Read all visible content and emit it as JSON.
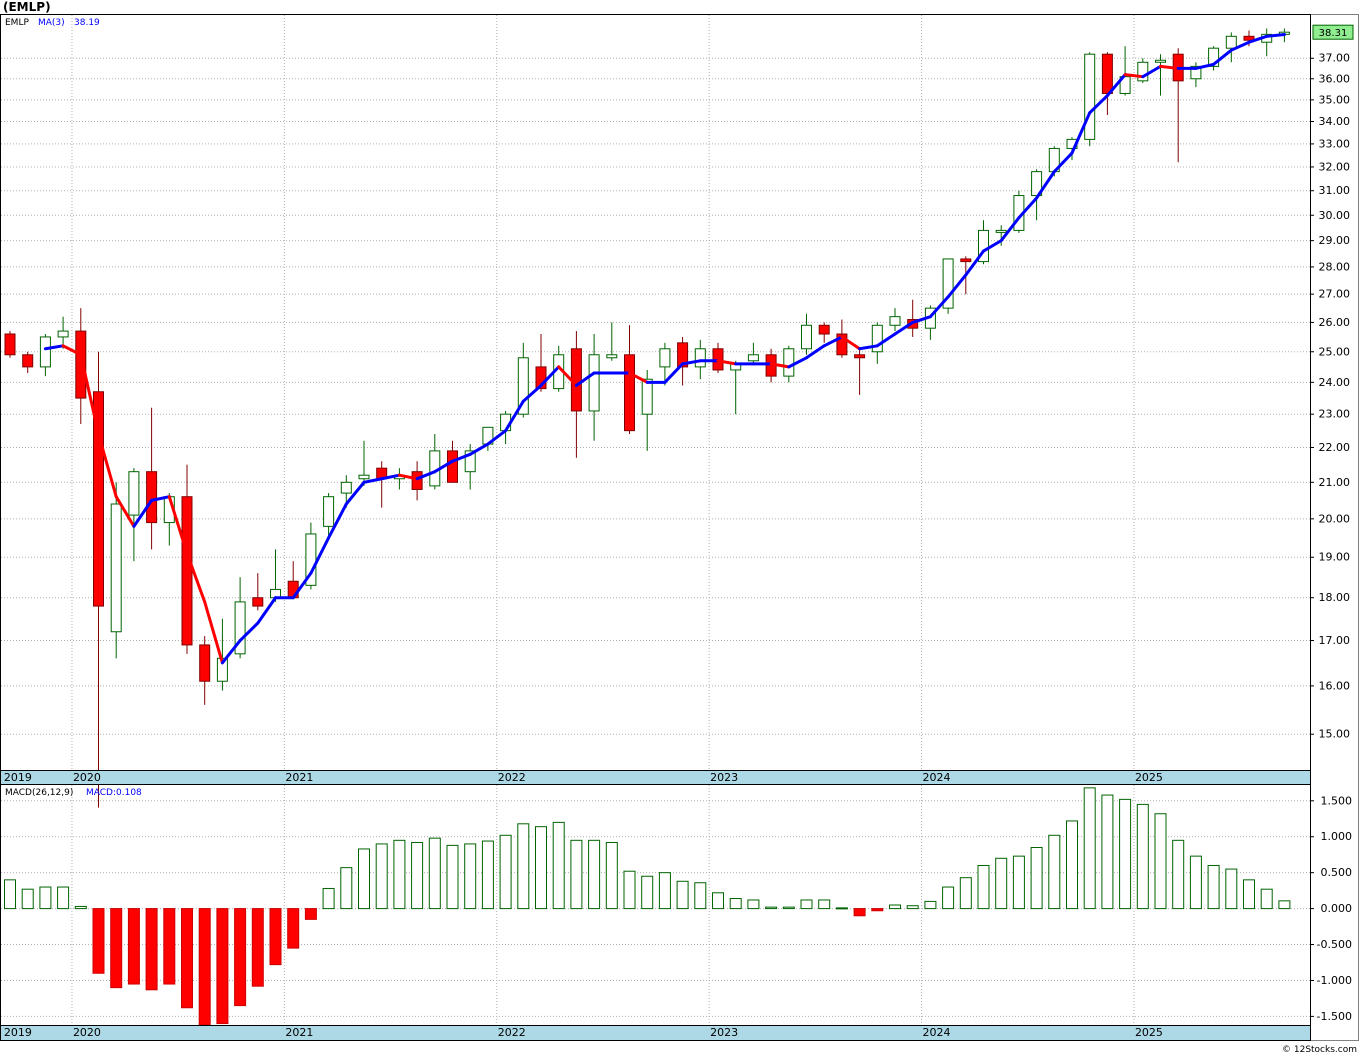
{
  "window_title": "(EMLP)",
  "footer": "© 12Stocks.com",
  "colors": {
    "up_candle_stroke": "#006400",
    "down_candle_fill": "#ff0000",
    "ma_up": "#0000ff",
    "ma_down": "#ff0000",
    "time_bar": "#add8e6",
    "grid": "#b0b0b0",
    "last_price_bg": "#90ee90"
  },
  "chart_data": [
    {
      "type": "candlestick",
      "symbol": "EMLP",
      "period": "monthly",
      "legend": {
        "symbol_label": "EMLP",
        "ma_label": "MA(3)",
        "ma_value": "38.19"
      },
      "last_price_label": "38.31",
      "y_scale": "log",
      "ylim": [
        14.3,
        39.2
      ],
      "y_ticks": [
        "15.00",
        "16.00",
        "17.00",
        "18.00",
        "19.00",
        "20.00",
        "21.00",
        "22.00",
        "23.00",
        "24.00",
        "25.00",
        "26.00",
        "27.00",
        "28.00",
        "29.00",
        "30.00",
        "31.00",
        "32.00",
        "33.00",
        "34.00",
        "35.00",
        "36.00",
        "37.00"
      ],
      "x_labels": [
        {
          "label": "2019",
          "index": -0.4
        },
        {
          "label": "2020",
          "index": 3.5
        },
        {
          "label": "2021",
          "index": 15.5
        },
        {
          "label": "2022",
          "index": 27.5
        },
        {
          "label": "2023",
          "index": 39.5
        },
        {
          "label": "2024",
          "index": 51.5
        },
        {
          "label": "2025",
          "index": 63.5
        }
      ],
      "grid": true,
      "candles": [
        {
          "d": "2019-09",
          "o": 25.6,
          "h": 25.7,
          "l": 24.8,
          "c": 24.9
        },
        {
          "d": "2019-10",
          "o": 24.9,
          "h": 25.0,
          "l": 24.3,
          "c": 24.5
        },
        {
          "d": "2019-11",
          "o": 24.5,
          "h": 25.6,
          "l": 24.2,
          "c": 25.5
        },
        {
          "d": "2019-12",
          "o": 25.5,
          "h": 26.2,
          "l": 25.1,
          "c": 25.7
        },
        {
          "d": "2020-01",
          "o": 25.7,
          "h": 26.5,
          "l": 22.7,
          "c": 23.5
        },
        {
          "d": "2020-02",
          "o": 23.7,
          "h": 25.0,
          "l": 13.6,
          "c": 17.8
        },
        {
          "d": "2020-03",
          "o": 17.2,
          "h": 21.0,
          "l": 16.6,
          "c": 20.4
        },
        {
          "d": "2020-04",
          "o": 20.1,
          "h": 21.4,
          "l": 18.9,
          "c": 21.3
        },
        {
          "d": "2020-05",
          "o": 21.3,
          "h": 23.2,
          "l": 19.2,
          "c": 19.9
        },
        {
          "d": "2020-06",
          "o": 19.9,
          "h": 20.7,
          "l": 19.3,
          "c": 20.6
        },
        {
          "d": "2020-07",
          "o": 20.6,
          "h": 21.5,
          "l": 16.7,
          "c": 16.9
        },
        {
          "d": "2020-08",
          "o": 16.9,
          "h": 17.1,
          "l": 15.6,
          "c": 16.1
        },
        {
          "d": "2020-09",
          "o": 16.1,
          "h": 17.5,
          "l": 15.9,
          "c": 16.6
        },
        {
          "d": "2020-10",
          "o": 16.7,
          "h": 18.5,
          "l": 16.6,
          "c": 17.9
        },
        {
          "d": "2020-11",
          "o": 18.0,
          "h": 18.6,
          "l": 17.7,
          "c": 17.8
        },
        {
          "d": "2020-12",
          "o": 18.0,
          "h": 19.2,
          "l": 17.9,
          "c": 18.2
        },
        {
          "d": "2021-01",
          "o": 18.4,
          "h": 18.9,
          "l": 18.0,
          "c": 18.0
        },
        {
          "d": "2021-02",
          "o": 18.3,
          "h": 19.9,
          "l": 18.2,
          "c": 19.6
        },
        {
          "d": "2021-03",
          "o": 19.8,
          "h": 20.7,
          "l": 19.5,
          "c": 20.6
        },
        {
          "d": "2021-04",
          "o": 20.7,
          "h": 21.2,
          "l": 20.3,
          "c": 21.0
        },
        {
          "d": "2021-05",
          "o": 21.1,
          "h": 22.2,
          "l": 20.9,
          "c": 21.2
        },
        {
          "d": "2021-06",
          "o": 21.4,
          "h": 21.6,
          "l": 20.3,
          "c": 21.1
        },
        {
          "d": "2021-07",
          "o": 21.1,
          "h": 21.4,
          "l": 20.8,
          "c": 21.2
        },
        {
          "d": "2021-08",
          "o": 21.3,
          "h": 21.6,
          "l": 20.5,
          "c": 20.8
        },
        {
          "d": "2021-09",
          "o": 20.9,
          "h": 22.4,
          "l": 20.8,
          "c": 21.9
        },
        {
          "d": "2021-10",
          "o": 21.9,
          "h": 22.2,
          "l": 21.0,
          "c": 21.0
        },
        {
          "d": "2021-11",
          "o": 21.3,
          "h": 22.1,
          "l": 20.8,
          "c": 21.9
        },
        {
          "d": "2021-12",
          "o": 22.1,
          "h": 22.6,
          "l": 21.9,
          "c": 22.6
        },
        {
          "d": "2022-01",
          "o": 22.5,
          "h": 23.1,
          "l": 22.1,
          "c": 23.0
        },
        {
          "d": "2022-02",
          "o": 23.0,
          "h": 25.3,
          "l": 22.9,
          "c": 24.8
        },
        {
          "d": "2022-03",
          "o": 24.5,
          "h": 25.6,
          "l": 23.7,
          "c": 23.8
        },
        {
          "d": "2022-04",
          "o": 23.8,
          "h": 25.2,
          "l": 23.7,
          "c": 24.9
        },
        {
          "d": "2022-05",
          "o": 25.1,
          "h": 25.7,
          "l": 21.7,
          "c": 23.1
        },
        {
          "d": "2022-06",
          "o": 23.1,
          "h": 25.6,
          "l": 22.2,
          "c": 24.9
        },
        {
          "d": "2022-07",
          "o": 24.8,
          "h": 26.0,
          "l": 24.7,
          "c": 24.9
        },
        {
          "d": "2022-08",
          "o": 24.9,
          "h": 25.9,
          "l": 22.4,
          "c": 22.5
        },
        {
          "d": "2022-09",
          "o": 23.0,
          "h": 24.4,
          "l": 21.9,
          "c": 24.1
        },
        {
          "d": "2022-10",
          "o": 24.5,
          "h": 25.3,
          "l": 23.9,
          "c": 25.1
        },
        {
          "d": "2022-11",
          "o": 25.3,
          "h": 25.5,
          "l": 23.9,
          "c": 24.5
        },
        {
          "d": "2022-12",
          "o": 24.5,
          "h": 25.4,
          "l": 24.1,
          "c": 25.1
        },
        {
          "d": "2023-01",
          "o": 25.1,
          "h": 25.3,
          "l": 24.3,
          "c": 24.4
        },
        {
          "d": "2023-02",
          "o": 24.4,
          "h": 24.7,
          "l": 23.0,
          "c": 24.6
        },
        {
          "d": "2023-03",
          "o": 24.7,
          "h": 25.3,
          "l": 24.6,
          "c": 24.9
        },
        {
          "d": "2023-04",
          "o": 24.9,
          "h": 25.1,
          "l": 24.0,
          "c": 24.2
        },
        {
          "d": "2023-05",
          "o": 24.2,
          "h": 25.2,
          "l": 24.0,
          "c": 25.1
        },
        {
          "d": "2023-06",
          "o": 25.1,
          "h": 26.3,
          "l": 24.9,
          "c": 25.9
        },
        {
          "d": "2023-07",
          "o": 25.9,
          "h": 26.0,
          "l": 25.3,
          "c": 25.6
        },
        {
          "d": "2023-08",
          "o": 25.6,
          "h": 26.1,
          "l": 24.8,
          "c": 24.9
        },
        {
          "d": "2023-09",
          "o": 24.9,
          "h": 25.1,
          "l": 23.6,
          "c": 24.8
        },
        {
          "d": "2023-10",
          "o": 25.0,
          "h": 26.0,
          "l": 24.6,
          "c": 25.9
        },
        {
          "d": "2023-11",
          "o": 25.9,
          "h": 26.5,
          "l": 25.7,
          "c": 26.2
        },
        {
          "d": "2023-12",
          "o": 26.1,
          "h": 26.8,
          "l": 25.5,
          "c": 25.8
        },
        {
          "d": "2024-01",
          "o": 25.8,
          "h": 26.6,
          "l": 25.4,
          "c": 26.5
        },
        {
          "d": "2024-02",
          "o": 26.5,
          "h": 28.3,
          "l": 26.3,
          "c": 28.3
        },
        {
          "d": "2024-03",
          "o": 28.3,
          "h": 28.4,
          "l": 27.0,
          "c": 28.2
        },
        {
          "d": "2024-04",
          "o": 28.2,
          "h": 29.8,
          "l": 28.1,
          "c": 29.4
        },
        {
          "d": "2024-05",
          "o": 29.4,
          "h": 29.6,
          "l": 28.8,
          "c": 29.4
        },
        {
          "d": "2024-06",
          "o": 29.4,
          "h": 31.0,
          "l": 29.3,
          "c": 30.8
        },
        {
          "d": "2024-07",
          "o": 30.8,
          "h": 31.9,
          "l": 29.8,
          "c": 31.8
        },
        {
          "d": "2024-08",
          "o": 31.8,
          "h": 32.9,
          "l": 31.6,
          "c": 32.8
        },
        {
          "d": "2024-09",
          "o": 32.8,
          "h": 33.3,
          "l": 32.3,
          "c": 33.2
        },
        {
          "d": "2024-10",
          "o": 33.2,
          "h": 37.3,
          "l": 32.9,
          "c": 37.2
        },
        {
          "d": "2024-11",
          "o": 37.2,
          "h": 37.3,
          "l": 34.3,
          "c": 35.3
        },
        {
          "d": "2024-12",
          "o": 35.3,
          "h": 37.6,
          "l": 35.2,
          "c": 36.1
        },
        {
          "d": "2025-01",
          "o": 35.9,
          "h": 37.0,
          "l": 35.8,
          "c": 36.8
        },
        {
          "d": "2025-02",
          "o": 36.9,
          "h": 37.2,
          "l": 35.2,
          "c": 36.9
        },
        {
          "d": "2025-03",
          "o": 37.2,
          "h": 37.5,
          "l": 32.2,
          "c": 35.9
        },
        {
          "d": "2025-04",
          "o": 36.0,
          "h": 36.8,
          "l": 35.6,
          "c": 36.6
        },
        {
          "d": "2025-05",
          "o": 36.6,
          "h": 37.6,
          "l": 36.4,
          "c": 37.5
        },
        {
          "d": "2025-06",
          "o": 37.5,
          "h": 38.3,
          "l": 36.8,
          "c": 38.1
        },
        {
          "d": "2025-07",
          "o": 38.1,
          "h": 38.4,
          "l": 37.6,
          "c": 37.9
        },
        {
          "d": "2025-08",
          "o": 37.8,
          "h": 38.5,
          "l": 37.1,
          "c": 38.2
        },
        {
          "d": "2025-09",
          "o": 38.2,
          "h": 38.5,
          "l": 37.8,
          "c": 38.31
        }
      ],
      "ma3": [
        null,
        null,
        25.1,
        25.2,
        24.9,
        22.4,
        20.6,
        19.8,
        20.5,
        20.6,
        19.1,
        17.9,
        16.5,
        17.0,
        17.4,
        18.0,
        18.0,
        18.6,
        19.5,
        20.4,
        21.0,
        21.1,
        21.2,
        21.1,
        21.3,
        21.6,
        21.8,
        22.1,
        22.5,
        23.4,
        23.9,
        24.5,
        23.9,
        24.3,
        24.3,
        24.3,
        24.0,
        24.0,
        24.6,
        24.7,
        24.7,
        24.6,
        24.6,
        24.6,
        24.5,
        24.8,
        25.2,
        25.5,
        25.1,
        25.2,
        25.6,
        26.0,
        26.2,
        26.9,
        27.7,
        28.6,
        29.0,
        29.9,
        30.7,
        31.8,
        32.6,
        34.4,
        35.2,
        36.2,
        36.1,
        36.6,
        36.5,
        36.5,
        36.7,
        37.4,
        37.8,
        38.1,
        38.19
      ],
      "macd": {
        "label": "MACD(26,12,9)",
        "value_label": "MACD:0.108",
        "ylim": [
          -1.62,
          1.72
        ],
        "y_ticks": [
          "1.500",
          "1.000",
          "0.500",
          "0.000",
          "-0.500",
          "-1.000",
          "-1.500"
        ],
        "histogram": [
          0.4,
          0.27,
          0.3,
          0.3,
          0.03,
          -0.9,
          -1.1,
          -1.05,
          -1.13,
          -1.05,
          -1.38,
          -1.62,
          -1.6,
          -1.35,
          -1.08,
          -0.78,
          -0.55,
          -0.15,
          0.28,
          0.57,
          0.83,
          0.9,
          0.95,
          0.92,
          0.98,
          0.88,
          0.9,
          0.94,
          1.02,
          1.18,
          1.14,
          1.2,
          0.95,
          0.95,
          0.92,
          0.52,
          0.45,
          0.5,
          0.38,
          0.36,
          0.22,
          0.14,
          0.12,
          0.02,
          0.02,
          0.12,
          0.12,
          0.01,
          -0.1,
          -0.03,
          0.05,
          0.04,
          0.1,
          0.3,
          0.43,
          0.6,
          0.7,
          0.73,
          0.85,
          1.02,
          1.22,
          1.68,
          1.58,
          1.52,
          1.45,
          1.32,
          0.95,
          0.73,
          0.6,
          0.55,
          0.4,
          0.27,
          0.108
        ]
      }
    }
  ]
}
